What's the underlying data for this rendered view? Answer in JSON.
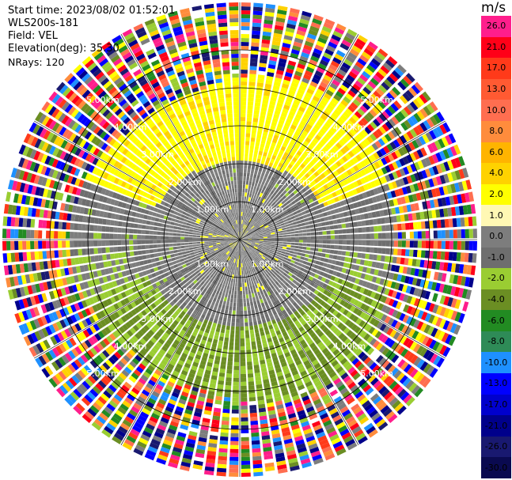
{
  "header": {
    "start_time": "Start time: 2023/08/02 01:52:01",
    "instrument": "WLS200s-181",
    "field": "Field: VEL",
    "elevation": "Elevation(deg): 35.30",
    "nrays": "NRays: 120"
  },
  "colorbar": {
    "unit": "m/s",
    "levels": [
      {
        "label": "26.0",
        "color": "#ff1e8c"
      },
      {
        "label": "21.0",
        "color": "#ff0018"
      },
      {
        "label": "17.0",
        "color": "#ff3a1a"
      },
      {
        "label": "13.0",
        "color": "#ff5a32"
      },
      {
        "label": "10.0",
        "color": "#ff6e50"
      },
      {
        "label": "8.0",
        "color": "#ff8c3c"
      },
      {
        "label": "6.0",
        "color": "#ffb400"
      },
      {
        "label": "4.0",
        "color": "#ffd200"
      },
      {
        "label": "2.0",
        "color": "#ffff00"
      },
      {
        "label": "1.0",
        "color": "#fff8b4"
      },
      {
        "label": "0.0",
        "color": "#7d7d7d"
      },
      {
        "label": "-1.0",
        "color": "#6e6e6e"
      },
      {
        "label": "-2.0",
        "color": "#9acd32"
      },
      {
        "label": "-4.0",
        "color": "#6b8e23"
      },
      {
        "label": "-6.0",
        "color": "#228b22"
      },
      {
        "label": "-8.0",
        "color": "#2e8b57"
      },
      {
        "label": "-10.0",
        "color": "#1e90ff"
      },
      {
        "label": "-13.0",
        "color": "#0000ff"
      },
      {
        "label": "-17.0",
        "color": "#0000cd"
      },
      {
        "label": "-21.0",
        "color": "#00008b"
      },
      {
        "label": "-26.0",
        "color": "#191970"
      },
      {
        "label": "-30.0",
        "color": "#0a0a50"
      }
    ]
  },
  "chart_data": {
    "type": "ppi",
    "field": "VEL",
    "units": "m/s",
    "elevation_deg": 35.3,
    "n_rays": 120,
    "range_rings_km": [
      "1.00km",
      "2.00km",
      "3.00km",
      "4.00km",
      "5.00km"
    ],
    "range_rings_values_km": [
      1,
      2,
      3,
      4,
      5
    ],
    "max_range_km": 5.0,
    "clean_range_km": 3.2,
    "pattern": {
      "north_sector_velocity": 2.0,
      "south_sector_velocity": -3.0,
      "center_velocity": 0.0,
      "far_range": "noise (mixed colors)"
    }
  }
}
